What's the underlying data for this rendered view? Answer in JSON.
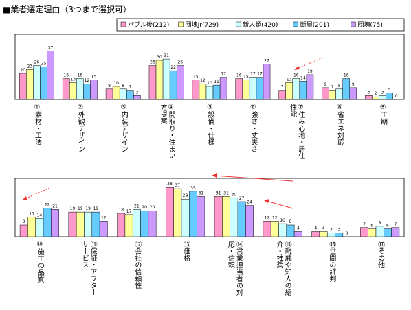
{
  "title": "■業者選定理由（3つまで選択可）",
  "chart_data": [
    {
      "type": "bar",
      "categories": [
        "①素材・工法",
        "②外観デザイン",
        "③内装デザイン",
        "④間取り・住まい方提案",
        "⑤設備・仕様",
        "⑥強さ・丈夫さ",
        "⑦住み心地・居住性能",
        "⑧省エネ対応",
        "⑨工期"
      ],
      "series": [
        {
          "name": "バブル後(212)",
          "color": "#ff99cc",
          "values": [
            20,
            16,
            8,
            26,
            15,
            16,
            7,
            9,
            3
          ]
        },
        {
          "name": "団塊Jr(729)",
          "color": "#ffff99",
          "values": [
            23,
            13,
            10,
            30,
            12,
            15,
            13,
            7,
            2
          ]
        },
        {
          "name": "新人類(420)",
          "color": "#ccffff",
          "values": [
            26,
            16,
            8,
            31,
            10,
            17,
            16,
            8,
            3
          ]
        },
        {
          "name": "断層(201)",
          "color": "#66ccff",
          "values": [
            25,
            12,
            7,
            22,
            11,
            17,
            14,
            16,
            5
          ]
        },
        {
          "name": "団塊(75)",
          "color": "#cc99ff",
          "values": [
            37,
            15,
            3,
            26,
            17,
            27,
            19,
            9,
            0
          ]
        }
      ],
      "ylim": [
        0,
        50
      ]
    },
    {
      "type": "bar",
      "categories": [
        "⑩施工の品質",
        "⑪保証・アフターサービス",
        "⑫会社の信頼性",
        "⑬価格",
        "⑭営業担当者の対応・信頼",
        "⑮親戚や知人の紹介・推奨",
        "⑯世間の評判",
        "⑰その他"
      ],
      "series": [
        {
          "color": "#ff99cc",
          "values": [
            9,
            19,
            18,
            38,
            31,
            12,
            4,
            7
          ]
        },
        {
          "color": "#ffff99",
          "values": [
            15,
            19,
            17,
            37,
            31,
            12,
            4,
            6
          ]
        },
        {
          "color": "#ccffff",
          "values": [
            14,
            19,
            21,
            29,
            30,
            10,
            3,
            8
          ]
        },
        {
          "color": "#66ccff",
          "values": [
            22,
            19,
            20,
            35,
            27,
            9,
            3,
            6
          ]
        },
        {
          "color": "#cc99ff",
          "values": [
            21,
            12,
            20,
            31,
            24,
            4,
            0,
            7
          ]
        }
      ],
      "ylim": [
        0,
        45
      ]
    }
  ]
}
